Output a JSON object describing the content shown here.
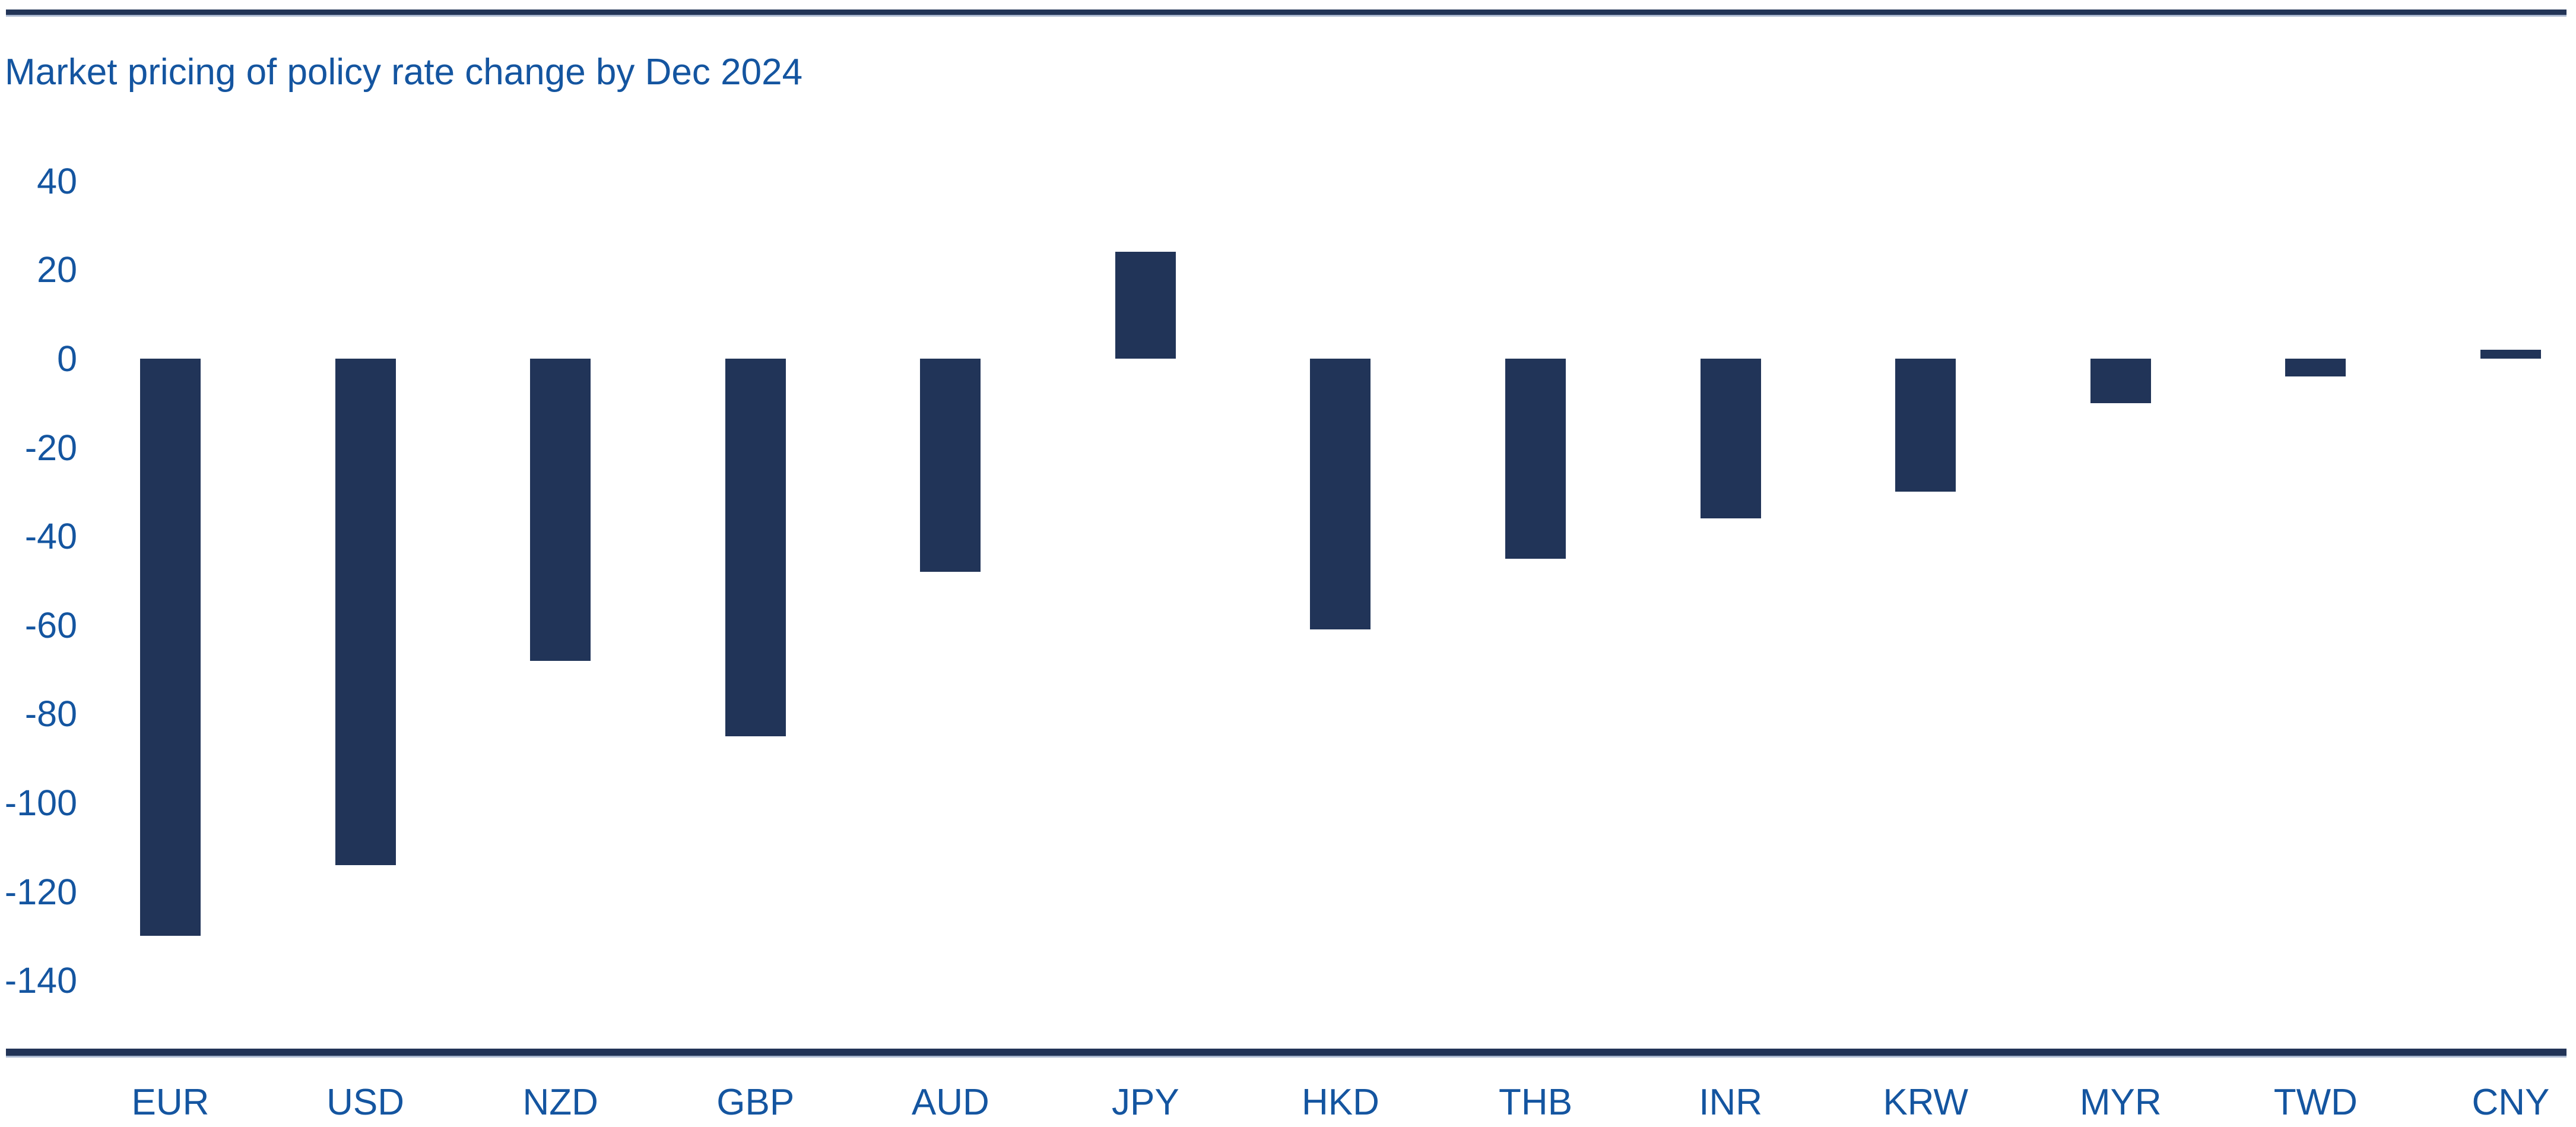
{
  "header": {
    "title": "Market pricing of policy rate change by Dec 2024"
  },
  "colors": {
    "background": "#FFFFFF",
    "bar": "#213458",
    "text_blue": "#1455A0",
    "rule": "#223457",
    "rule_edge": "#AAB8D0"
  },
  "chart_data": {
    "type": "bar",
    "title": "Market pricing of policy rate change by Dec 2024",
    "categories": [
      "EUR",
      "USD",
      "NZD",
      "GBP",
      "AUD",
      "JPY",
      "HKD",
      "THB",
      "INR",
      "KRW",
      "MYR",
      "TWD",
      "CNY"
    ],
    "values": [
      -130,
      -114,
      -68,
      -85,
      -48,
      24,
      -61,
      -45,
      -36,
      -30,
      -10,
      -4,
      2
    ],
    "xlabel": "",
    "ylabel": "",
    "ylim": [
      -140,
      40
    ],
    "yticks": [
      40,
      20,
      0,
      -20,
      -40,
      -60,
      -80,
      -100,
      -120,
      -140
    ],
    "grid": false,
    "legend": false,
    "bar_color": "#213458",
    "baseline": 0
  }
}
